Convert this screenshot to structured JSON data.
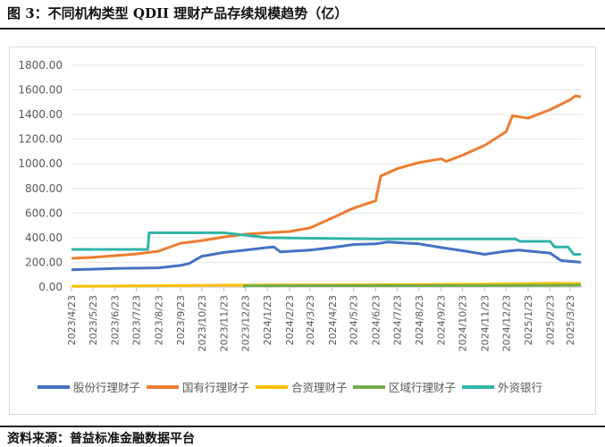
{
  "title": "图 3：不同机构类型 QDII 理财产品存续规模趋势（亿）",
  "source": "资料来源：普益标准金融数据平台",
  "chart_data": {
    "type": "line",
    "title": "",
    "xlabel": "",
    "ylabel": "",
    "ylim": [
      0,
      1800
    ],
    "grid": true,
    "legend": "bottom",
    "yticks": [
      "0.00",
      "200.00",
      "400.00",
      "600.00",
      "800.00",
      "1000.00",
      "1200.00",
      "1400.00",
      "1600.00",
      "1800.00"
    ],
    "xticks": [
      "2023/4/23",
      "2023/5/23",
      "2023/6/23",
      "2023/7/23",
      "2023/8/23",
      "2023/9/23",
      "2023/10/23",
      "2023/11/23",
      "2023/12/23",
      "2024/1/23",
      "2024/2/23",
      "2024/3/23",
      "2024/4/23",
      "2024/5/23",
      "2024/6/23",
      "2024/7/23",
      "2024/8/23",
      "2024/9/23",
      "2024/10/23",
      "2024/11/23",
      "2024/12/23",
      "2025/1/23",
      "2025/2/23",
      "2025/3/23"
    ],
    "series": [
      {
        "name": "股份行理财子",
        "color": "#4472c4",
        "points": [
          [
            "2023/4/23",
            140
          ],
          [
            "2023/6/23",
            150
          ],
          [
            "2023/8/23",
            155
          ],
          [
            "2023/9/23",
            175
          ],
          [
            "2023/10/5",
            190
          ],
          [
            "2023/10/23",
            250
          ],
          [
            "2023/11/23",
            280
          ],
          [
            "2023/12/23",
            300
          ],
          [
            "2024/1/23",
            320
          ],
          [
            "2024/2/1",
            325
          ],
          [
            "2024/2/10",
            285
          ],
          [
            "2024/3/23",
            300
          ],
          [
            "2024/4/23",
            320
          ],
          [
            "2024/5/23",
            345
          ],
          [
            "2024/6/23",
            350
          ],
          [
            "2024/7/10",
            365
          ],
          [
            "2024/8/23",
            350
          ],
          [
            "2024/9/23",
            320
          ],
          [
            "2024/10/23",
            295
          ],
          [
            "2024/11/23",
            265
          ],
          [
            "2024/12/23",
            290
          ],
          [
            "2025/1/10",
            300
          ],
          [
            "2025/2/23",
            275
          ],
          [
            "2025/3/10",
            215
          ],
          [
            "2025/4/7",
            200
          ]
        ]
      },
      {
        "name": "国有行理财子",
        "color": "#ed7d31",
        "points": [
          [
            "2023/4/23",
            232
          ],
          [
            "2023/5/23",
            240
          ],
          [
            "2023/6/23",
            254
          ],
          [
            "2023/7/23",
            268
          ],
          [
            "2023/8/23",
            290
          ],
          [
            "2023/9/23",
            355
          ],
          [
            "2023/10/23",
            377
          ],
          [
            "2023/11/23",
            406
          ],
          [
            "2023/12/23",
            428
          ],
          [
            "2024/1/23",
            440
          ],
          [
            "2024/2/23",
            450
          ],
          [
            "2024/3/23",
            480
          ],
          [
            "2024/4/23",
            560
          ],
          [
            "2024/5/23",
            640
          ],
          [
            "2024/6/23",
            700
          ],
          [
            "2024/6/30",
            900
          ],
          [
            "2024/7/23",
            960
          ],
          [
            "2024/8/23",
            1010
          ],
          [
            "2024/9/23",
            1040
          ],
          [
            "2024/9/30",
            1020
          ],
          [
            "2024/10/23",
            1070
          ],
          [
            "2024/11/23",
            1150
          ],
          [
            "2024/12/23",
            1260
          ],
          [
            "2025/1/1",
            1390
          ],
          [
            "2025/1/23",
            1370
          ],
          [
            "2025/2/23",
            1440
          ],
          [
            "2025/3/23",
            1520
          ],
          [
            "2025/3/30",
            1550
          ],
          [
            "2025/4/7",
            1545
          ]
        ]
      },
      {
        "name": "合资理财子",
        "color": "#ffc000",
        "points": [
          [
            "2023/4/23",
            5
          ],
          [
            "2023/12/23",
            15
          ],
          [
            "2024/6/23",
            18
          ],
          [
            "2024/12/23",
            25
          ],
          [
            "2025/2/23",
            30
          ],
          [
            "2025/4/7",
            28
          ]
        ]
      },
      {
        "name": "区域行理财子",
        "color": "#70ad47",
        "points": [
          [
            "2023/12/20",
            0
          ],
          [
            "2023/12/23",
            10
          ],
          [
            "2024/12/23",
            12
          ],
          [
            "2025/4/7",
            15
          ]
        ]
      },
      {
        "name": "外资银行",
        "color": "#2fb5a8",
        "points": [
          [
            "2023/4/23",
            305
          ],
          [
            "2023/8/8",
            305
          ],
          [
            "2023/8/10",
            440
          ],
          [
            "2023/11/23",
            440
          ],
          [
            "2024/1/23",
            400
          ],
          [
            "2024/6/23",
            390
          ],
          [
            "2025/1/5",
            390
          ],
          [
            "2025/1/12",
            370
          ],
          [
            "2025/2/23",
            370
          ],
          [
            "2025/3/1",
            325
          ],
          [
            "2025/3/20",
            325
          ],
          [
            "2025/3/28",
            265
          ],
          [
            "2025/4/7",
            265
          ]
        ]
      }
    ]
  }
}
